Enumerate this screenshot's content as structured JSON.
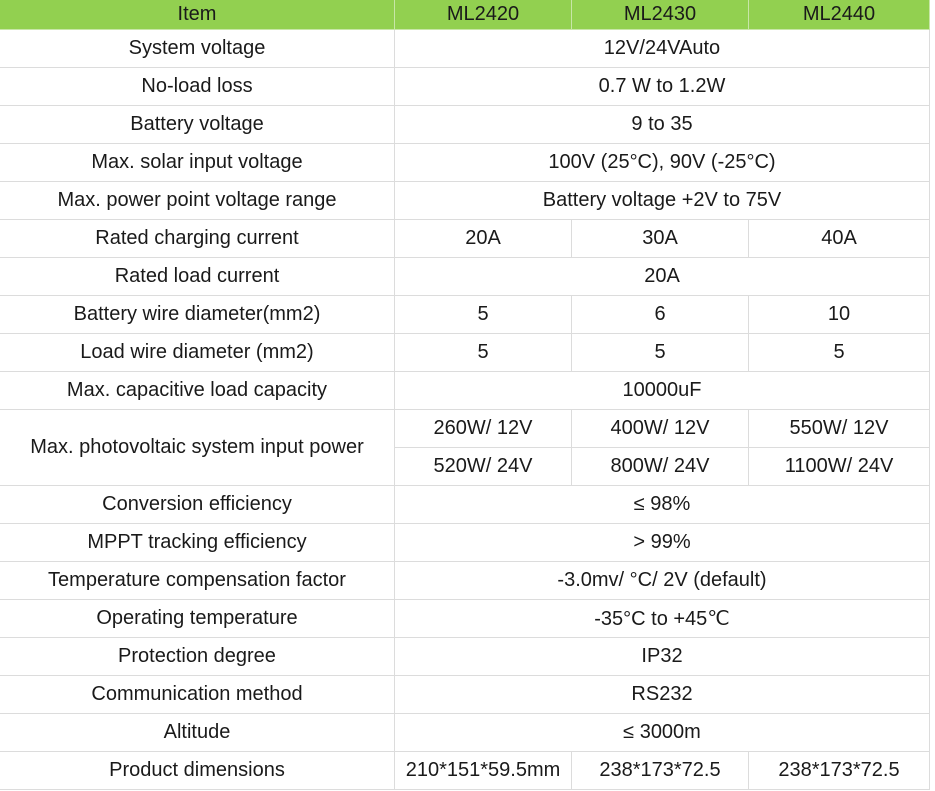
{
  "header": [
    "Item",
    "ML2420",
    "ML2430",
    "ML2440"
  ],
  "header_color": "#92d050",
  "rows": [
    {
      "label": "System voltage",
      "values": [
        "12V/24VAuto"
      ]
    },
    {
      "label": "No-load loss",
      "values": [
        "0.7 W to 1.2W"
      ]
    },
    {
      "label": "Battery voltage",
      "values": [
        "9 to 35"
      ]
    },
    {
      "label": "Max. solar input voltage",
      "values": [
        "100V (25°C), 90V (-25°C)"
      ]
    },
    {
      "label": "Max. power point voltage range",
      "values": [
        "Battery voltage +2V to 75V"
      ]
    },
    {
      "label": "Rated charging current",
      "values": [
        "20A",
        "30A",
        "40A"
      ]
    },
    {
      "label": "Rated load current",
      "values": [
        "20A"
      ]
    },
    {
      "label": "Battery wire diameter(mm2)",
      "values": [
        "5",
        "6",
        "10"
      ]
    },
    {
      "label": "Load wire diameter (mm2)",
      "values": [
        "5",
        "5",
        "5"
      ]
    },
    {
      "label": "Max. capacitive load capacity",
      "values": [
        "10000uF"
      ]
    },
    {
      "label": "Max. photovoltaic system input power",
      "subrows": [
        [
          "260W/ 12V",
          "400W/ 12V",
          "550W/ 12V"
        ],
        [
          "520W/ 24V",
          "800W/ 24V",
          "1100W/ 24V"
        ]
      ]
    },
    {
      "label": "Conversion efficiency",
      "values": [
        "≤ 98%"
      ]
    },
    {
      "label": "MPPT tracking efficiency",
      "values": [
        "> 99%"
      ]
    },
    {
      "label": "Temperature compensation factor",
      "values": [
        "-3.0mv/ °C/ 2V (default)"
      ]
    },
    {
      "label": "Operating temperature",
      "values": [
        "-35°C to +45℃"
      ]
    },
    {
      "label": "Protection degree",
      "values": [
        "IP32"
      ]
    },
    {
      "label": "Communication method",
      "values": [
        "RS232"
      ]
    },
    {
      "label": "Altitude",
      "values": [
        "≤ 3000m"
      ]
    },
    {
      "label": "Product dimensions",
      "values": [
        "210*151*59.5mm",
        "238*173*72.5",
        "238*173*72.5"
      ]
    }
  ]
}
